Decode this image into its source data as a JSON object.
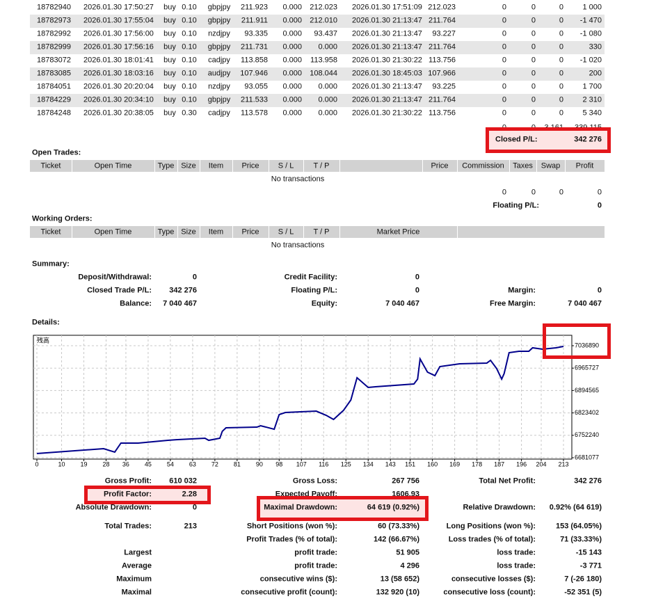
{
  "trades": {
    "rows": [
      [
        "18782940",
        "2026.01.30 17:50:27",
        "buy",
        "0.10",
        "gbpjpy",
        "211.923",
        "0.000",
        "212.023",
        "2026.01.30 17:51:09",
        "212.023",
        "0",
        "0",
        "0",
        "1 000"
      ],
      [
        "18782973",
        "2026.01.30 17:55:04",
        "buy",
        "0.10",
        "gbpjpy",
        "211.911",
        "0.000",
        "212.010",
        "2026.01.30 21:13:47",
        "211.764",
        "0",
        "0",
        "0",
        "-1 470"
      ],
      [
        "18782992",
        "2026.01.30 17:56:00",
        "buy",
        "0.10",
        "nzdjpy",
        "93.335",
        "0.000",
        "93.437",
        "2026.01.30 21:13:47",
        "93.227",
        "0",
        "0",
        "0",
        "-1 080"
      ],
      [
        "18782999",
        "2026.01.30 17:56:16",
        "buy",
        "0.10",
        "gbpjpy",
        "211.731",
        "0.000",
        "0.000",
        "2026.01.30 21:13:47",
        "211.764",
        "0",
        "0",
        "0",
        "330"
      ],
      [
        "18783072",
        "2026.01.30 18:01:41",
        "buy",
        "0.10",
        "cadjpy",
        "113.858",
        "0.000",
        "113.958",
        "2026.01.30 21:30:22",
        "113.756",
        "0",
        "0",
        "0",
        "-1 020"
      ],
      [
        "18783085",
        "2026.01.30 18:03:16",
        "buy",
        "0.10",
        "audjpy",
        "107.946",
        "0.000",
        "108.044",
        "2026.01.30 18:45:03",
        "107.966",
        "0",
        "0",
        "0",
        "200"
      ],
      [
        "18784051",
        "2026.01.30 20:20:04",
        "buy",
        "0.10",
        "nzdjpy",
        "93.055",
        "0.000",
        "0.000",
        "2026.01.30 21:13:47",
        "93.225",
        "0",
        "0",
        "0",
        "1 700"
      ],
      [
        "18784229",
        "2026.01.30 20:34:10",
        "buy",
        "0.10",
        "gbpjpy",
        "211.533",
        "0.000",
        "0.000",
        "2026.01.30 21:13:47",
        "211.764",
        "0",
        "0",
        "0",
        "2 310"
      ],
      [
        "18784248",
        "2026.01.30 20:38:05",
        "buy",
        "0.30",
        "cadjpy",
        "113.578",
        "0.000",
        "0.000",
        "2026.01.30 21:30:22",
        "113.756",
        "0",
        "0",
        "0",
        "5 340"
      ]
    ],
    "totals": [
      "0",
      "0",
      "3 161",
      "339 115"
    ]
  },
  "closed_pl": {
    "label": "Closed P/L:",
    "value": "342 276"
  },
  "open_trades": {
    "title": "Open Trades:",
    "headers": [
      "Ticket",
      "Open Time",
      "Type",
      "Size",
      "Item",
      "Price",
      "S / L",
      "T / P",
      "Price",
      "Commission",
      "Taxes",
      "Swap",
      "Profit"
    ],
    "empty": "No transactions",
    "totals": [
      "0",
      "0",
      "0",
      "0"
    ],
    "floating_label": "Floating P/L:",
    "floating_value": "0"
  },
  "working_orders": {
    "title": "Working Orders:",
    "headers": [
      "Ticket",
      "Open Time",
      "Type",
      "Size",
      "Item",
      "Price",
      "S / L",
      "T / P",
      "Market Price"
    ],
    "empty": "No transactions"
  },
  "summary": {
    "title": "Summary:",
    "rows": [
      [
        {
          "label": "Deposit/Withdrawal:",
          "value": "0"
        },
        {
          "label": "Credit Facility:",
          "value": "0"
        }
      ],
      [
        {
          "label": "Closed Trade P/L:",
          "value": "342 276"
        },
        {
          "label": "Floating P/L:",
          "value": "0"
        },
        {
          "label": "Margin:",
          "value": "0"
        }
      ],
      [
        {
          "label": "Balance:",
          "value": "7 040 467"
        },
        {
          "label": "Equity:",
          "value": "7 040 467"
        },
        {
          "label": "Free Margin:",
          "value": "7 040 467"
        }
      ]
    ]
  },
  "details": {
    "title": "Details:"
  },
  "chart_data": {
    "type": "line",
    "title": "残高",
    "series": [
      {
        "color": "#00008b",
        "x": [
          0,
          27,
          31.5,
          34,
          41,
          53,
          57,
          68,
          69.5,
          74,
          75,
          76.5,
          89,
          90.5,
          96,
          98,
          100.5,
          113,
          117,
          120,
          124,
          127,
          129.5,
          134,
          137,
          152.5,
          154,
          155,
          158,
          161,
          163,
          171,
          182,
          183.5,
          186,
          188,
          189,
          191,
          195,
          199,
          200.5,
          204.5,
          210,
          213
        ],
        "values": [
          6694300,
          6709800,
          6698800,
          6727500,
          6727500,
          6736300,
          6738500,
          6742900,
          6736300,
          6742900,
          6765000,
          6776100,
          6778300,
          6782700,
          6771600,
          6818100,
          6824700,
          6829100,
          6815800,
          6802600,
          6831300,
          6864500,
          6935200,
          6904300,
          6906500,
          6915300,
          6930800,
          6994900,
          6952900,
          6941800,
          6970600,
          6979400,
          6981700,
          6990500,
          6963900,
          6930800,
          6948500,
          7014800,
          7019200,
          7019200,
          7030300,
          7025800,
          7030300,
          7034700
        ]
      }
    ],
    "xlim": [
      0,
      213
    ],
    "xticks": [
      0,
      10,
      19,
      28,
      36,
      45,
      54,
      63,
      72,
      81,
      90,
      98,
      107,
      116,
      125,
      134,
      143,
      151,
      160,
      169,
      178,
      187,
      196,
      204,
      213
    ],
    "ylim": [
      6676660,
      7070040
    ],
    "yticks": [
      6681077,
      6752240,
      6823402,
      6894565,
      6965727,
      7036890
    ],
    "grid": true
  },
  "stats": {
    "rows": [
      {
        "left": {
          "label": "Gross Profit:",
          "value": "610 032"
        },
        "middle": {
          "label": "Gross Loss:",
          "value": "267 756"
        },
        "right": {
          "label": "Total Net Profit:",
          "value": "342 276"
        }
      },
      {
        "left": {
          "label": "Profit Factor:",
          "value": "2.28"
        },
        "middle": {
          "label": "Expected Payoff:",
          "value": "1606.93"
        }
      },
      {
        "left": {
          "label": "Absolute Drawdown:",
          "value": "0"
        },
        "middle": {
          "label": "Maximal Drawdown:",
          "value": "64 619 (0.92%)"
        },
        "right": {
          "label": "Relative Drawdown:",
          "value": "0.92% (64 619)"
        }
      },
      {
        "left": {
          "label": "Total Trades:",
          "value": "213"
        },
        "middle": {
          "label": "Short Positions (won %):",
          "value": "60 (73.33%)"
        },
        "right": {
          "label": "Long Positions (won %):",
          "value": "153 (64.05%)"
        }
      },
      {
        "middle": {
          "label": "Profit Trades (% of total):",
          "value": "142 (66.67%)"
        },
        "right": {
          "label": "Loss trades (% of total):",
          "value": "71 (33.33%)"
        }
      },
      {
        "left": {
          "label": "Largest"
        },
        "middle": {
          "label": "profit trade:",
          "value": "51 905"
        },
        "right": {
          "label": "loss trade:",
          "value": "-15 143"
        }
      },
      {
        "left": {
          "label": "Average"
        },
        "middle": {
          "label": "profit trade:",
          "value": "4 296"
        },
        "right": {
          "label": "loss trade:",
          "value": "-3 771"
        }
      },
      {
        "left": {
          "label": "Maximum"
        },
        "middle": {
          "label": "consecutive wins ($):",
          "value": "13 (58 652)"
        },
        "right": {
          "label": "consecutive losses ($):",
          "value": "7 (-26 180)"
        }
      },
      {
        "left": {
          "label": "Maximal"
        },
        "middle": {
          "label": "consecutive profit (count):",
          "value": "132 920 (10)"
        },
        "right": {
          "label": "consecutive loss (count):",
          "value": "-52 351 (5)"
        }
      }
    ]
  }
}
